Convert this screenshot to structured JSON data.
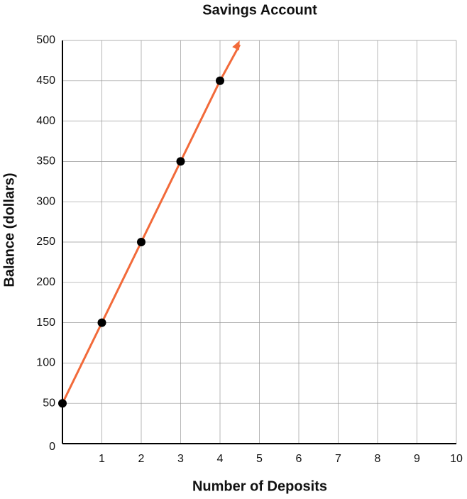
{
  "chart_data": {
    "type": "line",
    "title": "Savings Account",
    "x_label": "Number of Deposits",
    "y_label": "Balance (dollars)",
    "x": [
      0,
      1,
      2,
      3,
      4
    ],
    "values": [
      50,
      150,
      250,
      350,
      450
    ],
    "color": "#f26a3a",
    "marker_color": "#000000",
    "xlim": [
      0,
      10
    ],
    "xticks": [
      1,
      2,
      3,
      4,
      5,
      6,
      7,
      8,
      9,
      10
    ],
    "ylim": [
      0,
      500
    ],
    "yticks": [
      0,
      50,
      100,
      150,
      200,
      250,
      300,
      350,
      400,
      450,
      500
    ],
    "grid": true,
    "arrow": true
  }
}
